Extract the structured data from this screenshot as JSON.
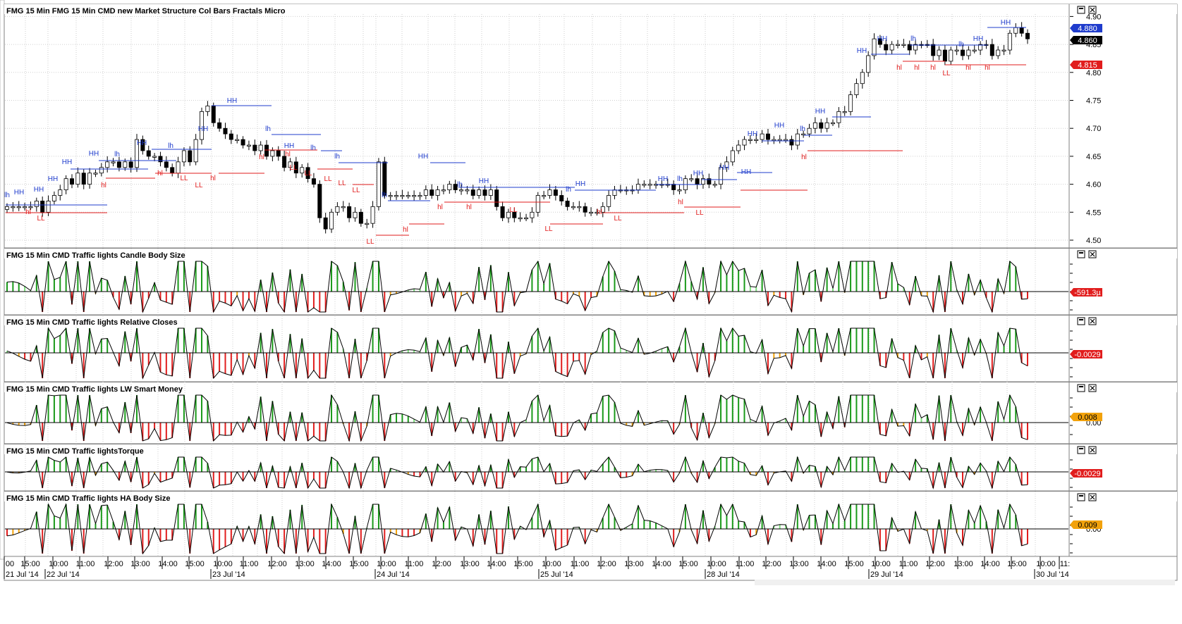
{
  "symbol": "FMG",
  "timeframe": "15 Min",
  "panels": [
    {
      "id": "price",
      "title": "FMG  15 Min    FMG  15 Min  CMD new Market Structure Col Bars Fractals Micro",
      "axis_ticks": [
        "4.50",
        "4.55",
        "4.60",
        "4.65",
        "4.70",
        "4.75",
        "4.80",
        "4.85",
        "4.90"
      ],
      "tags": [
        {
          "text": "4.880",
          "bg": "#1f3ccc",
          "fg": "#ffffff"
        },
        {
          "text": "4.860",
          "bg": "#000000",
          "fg": "#ffffff"
        },
        {
          "text": "4.815",
          "bg": "#e11d1d",
          "fg": "#ffffff"
        }
      ]
    },
    {
      "id": "ind1",
      "title": "FMG  15 Min  CMD Traffic lights Candle Body Size",
      "tags": [
        {
          "text": "-591.3µ",
          "bg": "#e11d1d",
          "fg": "#ffffff"
        }
      ],
      "zero_label": ""
    },
    {
      "id": "ind2",
      "title": "FMG  15 Min  CMD Traffic lights Relative Closes",
      "tags": [
        {
          "text": "-0.0029",
          "bg": "#e11d1d",
          "fg": "#ffffff"
        }
      ],
      "zero_label": ""
    },
    {
      "id": "ind3",
      "title": "FMG  15 Min  CMD Traffic lights LW Smart Money",
      "tags": [
        {
          "text": "0.008",
          "bg": "#f2a20c",
          "fg": "#000000"
        }
      ],
      "zero_label": "0.00"
    },
    {
      "id": "ind4",
      "title": "FMG  15 Min  CMD Traffic lightsTorque",
      "tags": [
        {
          "text": "-0.0029",
          "bg": "#e11d1d",
          "fg": "#ffffff"
        }
      ],
      "zero_label": ""
    },
    {
      "id": "ind5",
      "title": "FMG  15 Min  CMD Traffic lights HA Body Size",
      "tags": [
        {
          "text": "0.009",
          "bg": "#f2a20c",
          "fg": "#000000"
        }
      ],
      "zero_label": "0.00"
    }
  ],
  "time_axis": {
    "times": [
      "00",
      "15:00",
      "10:00",
      "11:00",
      "12:00",
      "13:00",
      "14:00",
      "15:00",
      "10:00",
      "11:00",
      "12:00",
      "13:00",
      "14:00",
      "15:00",
      "10:00",
      "11:00",
      "12:00",
      "13:00",
      "14:00",
      "15:00",
      "10:00",
      "11:00",
      "12:00",
      "13:00",
      "14:00",
      "15:00",
      "10:00",
      "11:00",
      "12:00",
      "13:00",
      "14:00",
      "15:00",
      "10:00",
      "11:00",
      "12:00",
      "13:00",
      "14:00",
      "15:00",
      "10:00",
      "11:"
    ],
    "dates": [
      "21 Jul '14",
      "22 Jul '14",
      "23 Jul '14",
      "24 Jul '14",
      "25 Jul '14",
      "28 Jul '14",
      "29 Jul '14",
      "30 Jul '14"
    ]
  },
  "marker_labels": {
    "HH": "HH",
    "lh": "lh",
    "hl": "hl",
    "LL": "LL"
  },
  "chart_data": [
    {
      "type": "candlestick",
      "title": "CMD new Market Structure Col Bars Fractals Micro",
      "ylim": [
        4.5,
        4.9
      ],
      "closes": [
        4.56,
        4.56,
        4.56,
        4.56,
        4.56,
        4.57,
        4.55,
        4.57,
        4.58,
        4.59,
        4.61,
        4.6,
        4.62,
        4.6,
        4.62,
        4.62,
        4.63,
        4.64,
        4.64,
        4.63,
        4.64,
        4.63,
        4.68,
        4.66,
        4.65,
        4.65,
        4.64,
        4.63,
        4.62,
        4.64,
        4.66,
        4.64,
        4.68,
        4.73,
        4.74,
        4.71,
        4.7,
        4.69,
        4.68,
        4.68,
        4.67,
        4.67,
        4.66,
        4.67,
        4.65,
        4.66,
        4.65,
        4.63,
        4.64,
        4.62,
        4.63,
        4.61,
        4.6,
        4.54,
        4.52,
        4.55,
        4.56,
        4.56,
        4.54,
        4.55,
        4.53,
        4.53,
        4.56,
        4.64,
        4.58,
        4.58,
        4.58,
        4.58,
        4.58,
        4.58,
        4.58,
        4.59,
        4.58,
        4.59,
        4.59,
        4.6,
        4.59,
        4.59,
        4.59,
        4.58,
        4.59,
        4.58,
        4.59,
        4.56,
        4.54,
        4.55,
        4.54,
        4.54,
        4.54,
        4.55,
        4.58,
        4.58,
        4.59,
        4.58,
        4.57,
        4.56,
        4.56,
        4.56,
        4.55,
        4.55,
        4.55,
        4.56,
        4.58,
        4.59,
        4.59,
        4.59,
        4.59,
        4.6,
        4.6,
        4.6,
        4.6,
        4.6,
        4.6,
        4.59,
        4.59,
        4.61,
        4.61,
        4.6,
        4.61,
        4.6,
        4.6,
        4.63,
        4.64,
        4.66,
        4.67,
        4.68,
        4.68,
        4.68,
        4.69,
        4.68,
        4.68,
        4.68,
        4.68,
        4.67,
        4.69,
        4.69,
        4.7,
        4.71,
        4.7,
        4.71,
        4.71,
        4.73,
        4.73,
        4.76,
        4.78,
        4.8,
        4.83,
        4.86,
        4.85,
        4.84,
        4.85,
        4.85,
        4.85,
        4.84,
        4.85,
        4.85,
        4.85,
        4.83,
        4.84,
        4.82,
        4.84,
        4.84,
        4.83,
        4.84,
        4.84,
        4.85,
        4.85,
        4.83,
        4.84,
        4.84,
        4.87,
        4.88,
        4.87,
        4.86
      ]
    },
    {
      "type": "histogram",
      "title": "CMD Traffic lights Candle Body Size",
      "colors": {
        "up_strong": "#1a9a1a",
        "up_weak": "#7fe07f",
        "down_weak": "#f2a20c",
        "down_strong": "#e11d1d"
      },
      "last_value": -0.0005913
    },
    {
      "type": "histogram",
      "title": "CMD Traffic lights Relative Closes",
      "last_value": -0.0029
    },
    {
      "type": "histogram",
      "title": "CMD Traffic lights LW Smart Money",
      "last_value": 0.008
    },
    {
      "type": "histogram",
      "title": "CMD Traffic lightsTorque",
      "last_value": -0.0029
    },
    {
      "type": "histogram",
      "title": "CMD Traffic lights HA Body Size",
      "last_value": 0.009
    }
  ],
  "colors": {
    "up": "#ffffff",
    "down": "#000000",
    "structure_high": "#1f3ccc",
    "structure_low": "#e11d1d",
    "hist_green": "#1a9a1a",
    "hist_lime": "#7fe07f",
    "hist_orange": "#f2a20c",
    "hist_red": "#e11d1d"
  }
}
